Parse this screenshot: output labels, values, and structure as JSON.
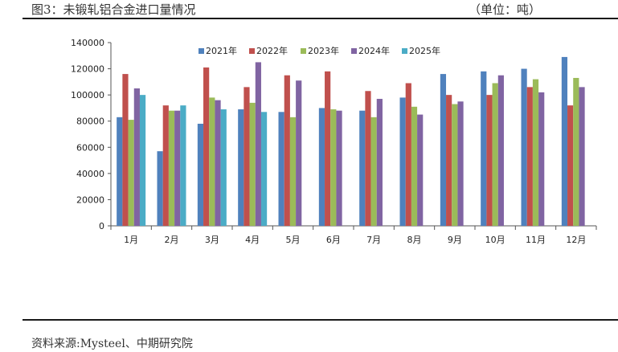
{
  "header": {
    "title": "图3：未锻轧铝合金进口量情况",
    "unit": "（单位：吨）"
  },
  "footer": {
    "source": "资料来源:Mysteel、中期研究院"
  },
  "chart_data": {
    "type": "bar",
    "categories": [
      "1月",
      "2月",
      "3月",
      "4月",
      "5月",
      "6月",
      "7月",
      "8月",
      "9月",
      "10月",
      "11月",
      "12月"
    ],
    "series": [
      {
        "name": "2021年",
        "color": "#4F81BD",
        "values": [
          83000,
          57000,
          78000,
          89000,
          87000,
          90000,
          88000,
          98000,
          116000,
          118000,
          120000,
          129000
        ]
      },
      {
        "name": "2022年",
        "color": "#C0504D",
        "values": [
          116000,
          92000,
          121000,
          106000,
          115000,
          118000,
          103000,
          109000,
          100000,
          100000,
          106000,
          92000
        ]
      },
      {
        "name": "2023年",
        "color": "#9BBB59",
        "values": [
          81000,
          88000,
          98000,
          94000,
          83000,
          89000,
          83000,
          91000,
          93000,
          109000,
          112000,
          113000
        ]
      },
      {
        "name": "2024年",
        "color": "#8064A2",
        "values": [
          105000,
          88000,
          96000,
          125000,
          111000,
          88000,
          97000,
          85000,
          95000,
          115000,
          102000,
          106000
        ]
      },
      {
        "name": "2025年",
        "color": "#4BACC6",
        "values": [
          100000,
          92000,
          89000,
          87000,
          null,
          null,
          null,
          null,
          null,
          null,
          null,
          null
        ]
      }
    ],
    "y_ticks": [
      "0",
      "20000",
      "40000",
      "60000",
      "80000",
      "100000",
      "120000",
      "140000"
    ],
    "ylim": [
      0,
      140000
    ],
    "grid": false,
    "legend_position": "top"
  }
}
